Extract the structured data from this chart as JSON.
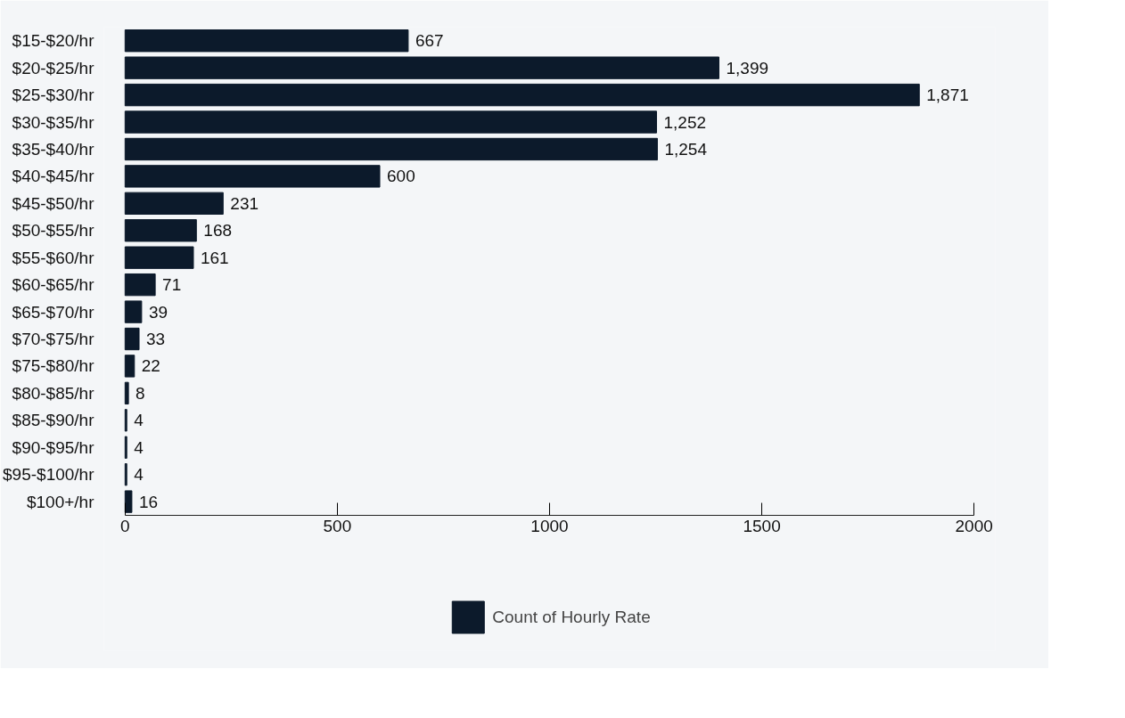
{
  "chart_data": {
    "type": "bar",
    "orientation": "horizontal",
    "categories": [
      "$15-$20/hr",
      "$20-$25/hr",
      "$25-$30/hr",
      "$30-$35/hr",
      "$35-$40/hr",
      "$40-$45/hr",
      "$45-$50/hr",
      "$50-$55/hr",
      "$55-$60/hr",
      "$60-$65/hr",
      "$65-$70/hr",
      "$70-$75/hr",
      "$75-$80/hr",
      "$80-$85/hr",
      "$85-$90/hr",
      "$90-$95/hr",
      "$95-$100/hr",
      "$100+/hr"
    ],
    "series": [
      {
        "name": "Count of Hourly Rate",
        "color": "#0c1a2b",
        "values": [
          667,
          1399,
          1871,
          1252,
          1254,
          600,
          231,
          168,
          161,
          71,
          39,
          33,
          22,
          8,
          4,
          4,
          4,
          16
        ],
        "value_labels": [
          "667",
          "1,399",
          "1,871",
          "1,252",
          "1,254",
          "600",
          "231",
          "168",
          "161",
          "71",
          "39",
          "33",
          "22",
          "8",
          "4",
          "4",
          "4",
          "16"
        ]
      }
    ],
    "xlim": [
      0,
      2000
    ],
    "xticks": [
      0,
      500,
      1000,
      1500,
      2000
    ],
    "grid": false,
    "legend": "bottom"
  }
}
